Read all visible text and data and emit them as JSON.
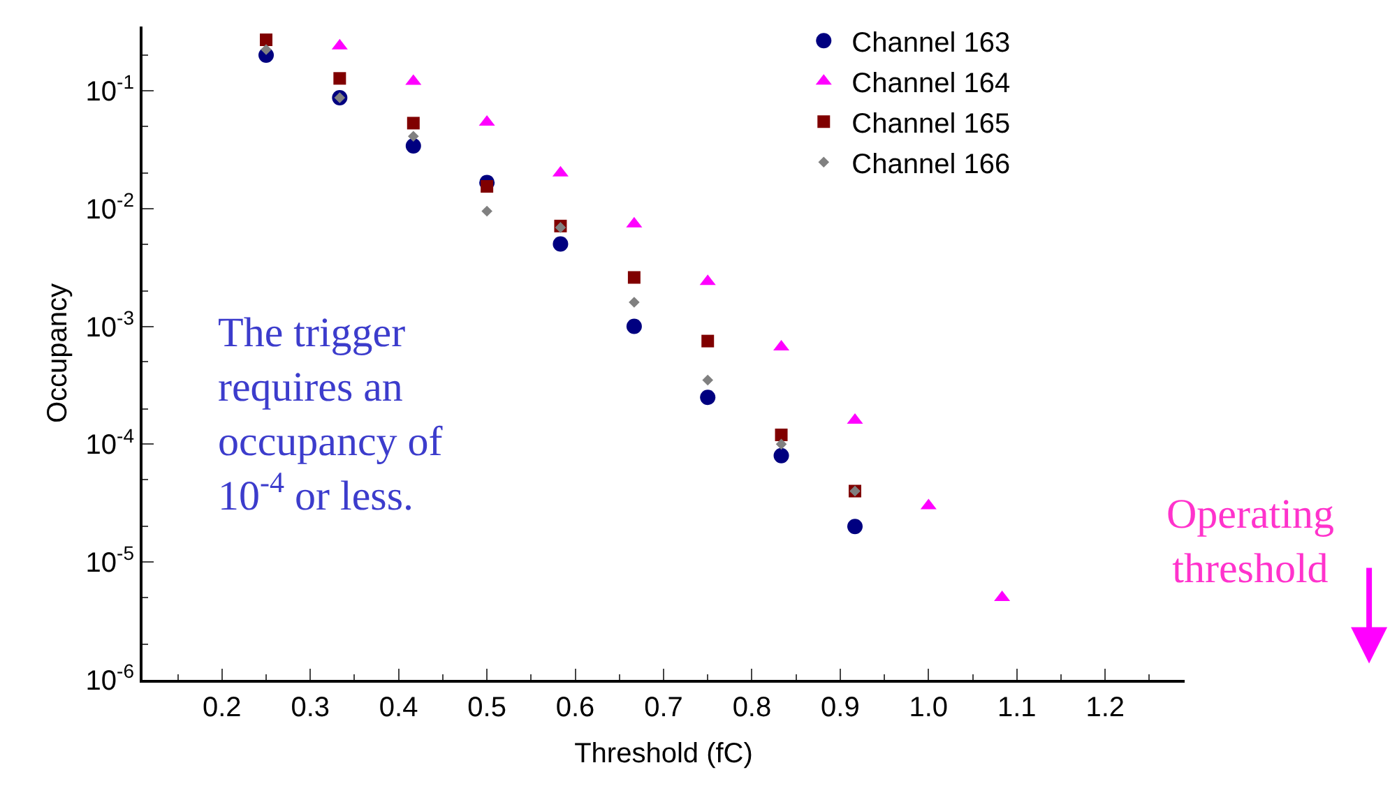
{
  "chart_data": {
    "type": "scatter",
    "xlabel": "Threshold (fC)",
    "ylabel": "Occupancy",
    "log": "y",
    "legend": "top right",
    "x": [
      0.25,
      0.3333,
      0.4167,
      0.5,
      0.5833,
      0.6667,
      0.75,
      0.8333,
      0.9167,
      1.0,
      1.0833
    ],
    "xlim": [
      0.11,
      1.29
    ],
    "xticks": [
      0.2,
      0.3,
      0.4,
      0.5,
      0.6,
      0.7,
      0.8,
      0.9,
      {
        "value": 1.0,
        "label": "1.0"
      },
      1.1,
      1.2
    ],
    "ylim": [
      1e-06,
      0.35
    ],
    "yticks": [
      {
        "value": 1e-06,
        "label": "10$^{-6}$"
      },
      {
        "value": 1e-05,
        "label": "10$^{-5}$"
      },
      {
        "value": 0.0001,
        "label": "10$^{-4}$"
      },
      {
        "value": 0.001,
        "label": "10$^{-3}$"
      },
      {
        "value": 0.01,
        "label": "10$^{-2}$"
      },
      {
        "value": 0.1,
        "label": "10$^{-1}$"
      }
    ],
    "series": [
      {
        "name": "Channel 163",
        "color": "#000080",
        "marker": "circle",
        "values": [
          0.2,
          0.087,
          0.034,
          0.0166,
          0.005,
          0.001,
          0.00025,
          8e-05,
          2e-05,
          null,
          null
        ]
      },
      {
        "name": "Channel 164",
        "color": "#ff00ff",
        "marker": "triangle",
        "values": [
          null,
          0.24,
          0.12,
          0.054,
          0.02,
          0.0074,
          0.0024,
          0.00067,
          0.00016,
          3e-05,
          5e-06
        ]
      },
      {
        "name": "Channel 165",
        "color": "#800000",
        "marker": "square",
        "values": [
          0.27,
          0.127,
          0.053,
          0.0154,
          0.0071,
          0.0026,
          0.00075,
          0.00012,
          4e-05,
          null,
          null
        ]
      },
      {
        "name": "Channel 166",
        "color": "#808080",
        "marker": "diamond",
        "values": [
          0.223,
          0.087,
          0.041,
          0.0095,
          0.0069,
          0.0016,
          0.00035,
          0.0001,
          4e-05,
          null,
          null
        ]
      }
    ],
    "annotations": [
      "The trigger\nrequires an\noccupancy of\n10$^{-4}$ or less.",
      "Operating\nthreshold"
    ]
  }
}
